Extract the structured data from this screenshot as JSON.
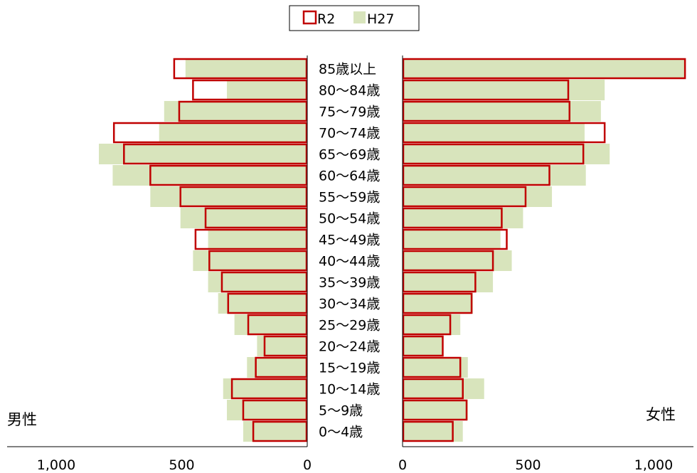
{
  "chart_data": {
    "type": "bar",
    "orientation": "horizontal-pyramid",
    "title": "",
    "categories": [
      "85歳以上",
      "80～84歳",
      "75～79歳",
      "70～74歳",
      "65～69歳",
      "60～64歳",
      "55～59歳",
      "50～54歳",
      "45～49歳",
      "40～44歳",
      "35～39歳",
      "30～34歳",
      "25～29歳",
      "20～24歳",
      "15～19歳",
      "10～14歳",
      "5～9歳",
      "0～4歳"
    ],
    "male_label": "男性",
    "female_label": "女性",
    "series": [
      {
        "name": "R2",
        "style": "outline",
        "color": "#c00000",
        "male": [
          530,
          455,
          510,
          770,
          730,
          625,
          505,
          405,
          445,
          390,
          340,
          315,
          235,
          170,
          205,
          300,
          255,
          215
        ],
        "female": [
          1125,
          660,
          665,
          805,
          720,
          585,
          490,
          395,
          415,
          360,
          290,
          275,
          190,
          160,
          230,
          240,
          255,
          200
        ]
      },
      {
        "name": "H27",
        "style": "fill",
        "color": "#d8e4bc",
        "male": [
          485,
          320,
          570,
          590,
          830,
          775,
          625,
          505,
          395,
          455,
          395,
          355,
          290,
          200,
          240,
          335,
          320,
          255
        ],
        "female": [
          1125,
          805,
          790,
          725,
          825,
          730,
          595,
          480,
          390,
          435,
          360,
          280,
          230,
          160,
          260,
          325,
          260,
          240
        ]
      }
    ],
    "xlim": [
      0,
      1000
    ],
    "x_ticks": [
      0,
      500,
      1000
    ],
    "x_tick_labels": [
      "0",
      "500",
      "1,000"
    ],
    "legend": {
      "position": "top-center"
    },
    "grid": false
  }
}
